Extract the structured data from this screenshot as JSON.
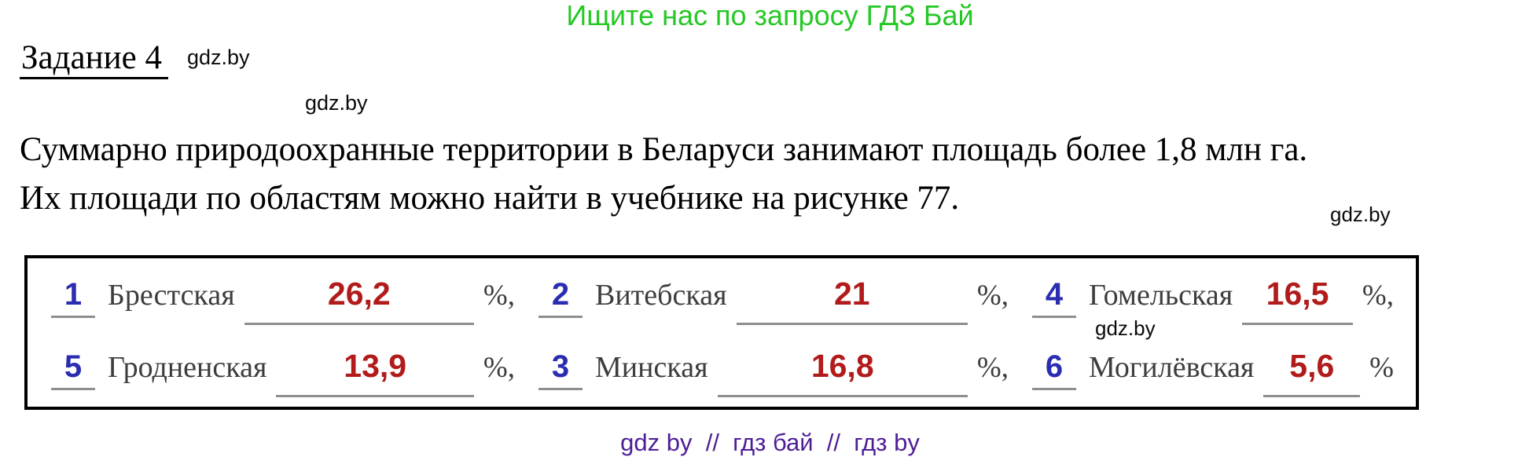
{
  "page": {
    "header_text": "Ищите нас по запросу ГДЗ Бай",
    "task_title": "Задание 4",
    "watermark": "gdz.by",
    "paragraph_line1": "Суммарно природоохранные территории в Беларуси занимают площадь более 1,8 млн га.",
    "paragraph_line2": "Их площади по областям можно найти в учебнике на рисунке 77.",
    "footer_text": "gdz by  //  гдз бай  //  гдз by"
  },
  "answers": {
    "rows": [
      [
        {
          "order": "1",
          "region": "Брестская",
          "value": "26,2",
          "suffix": "%,"
        },
        {
          "order": "2",
          "region": "Витебская",
          "value": "21",
          "suffix": "%,"
        },
        {
          "order": "4",
          "region": "Гомельская",
          "value": "16,5",
          "suffix": "%,"
        }
      ],
      [
        {
          "order": "5",
          "region": "Гродненская",
          "value": "13,9",
          "suffix": "%,"
        },
        {
          "order": "3",
          "region": "Минская",
          "value": "16,8",
          "suffix": "%,"
        },
        {
          "order": "6",
          "region": "Могилёвская",
          "value": "5,6",
          "suffix": "%"
        }
      ]
    ]
  },
  "colors": {
    "banner_green": "#25c825",
    "order_number_blue": "#2a2cb2",
    "answer_value_red": "#b11b1b",
    "footer_purple": "#4e1e96",
    "label_gray": "#3d3d3d",
    "blank_line_gray": "#8e8e8e"
  }
}
